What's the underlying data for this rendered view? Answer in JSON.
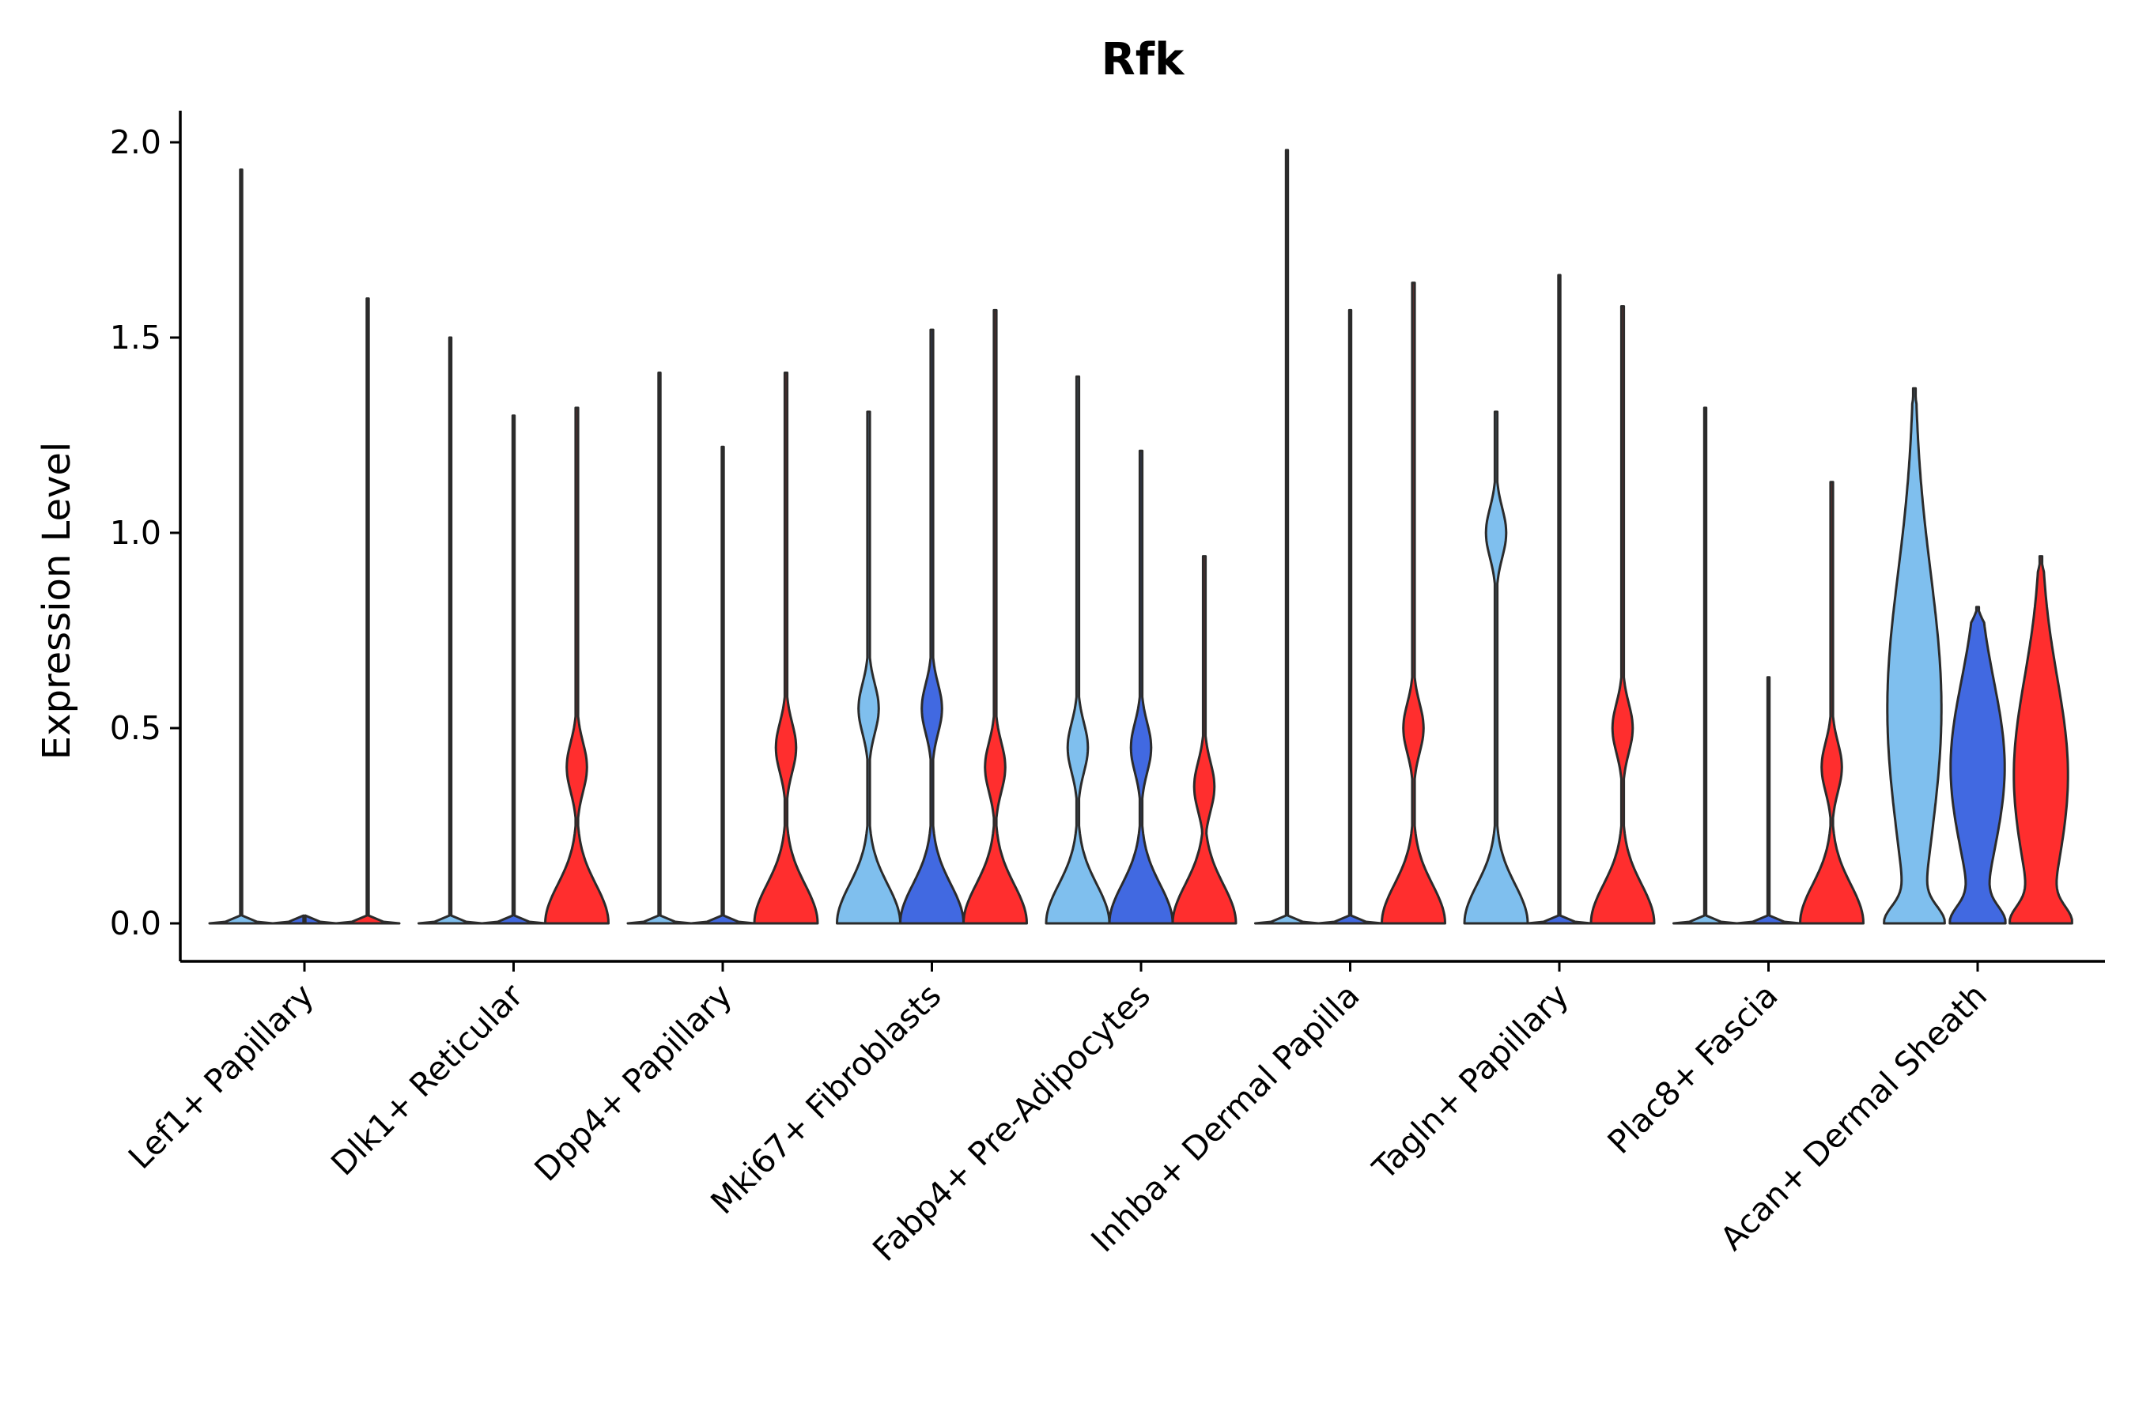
{
  "chart_data": {
    "type": "violin",
    "title": "Rfk",
    "xlabel": "",
    "ylabel": "Expression Level",
    "ylim": [
      -0.1,
      2.08
    ],
    "yticks": [
      "0.0",
      "0.5",
      "1.0",
      "1.5",
      "2.0"
    ],
    "ytick_values": [
      0,
      0.5,
      1.0,
      1.5,
      2.0
    ],
    "grid": false,
    "legend": "none",
    "series_colors": [
      "#7fbfee",
      "#4169e1",
      "#ff2e2e"
    ],
    "categories": [
      "Lef1+ Papillary",
      "Dlk1+ Reticular",
      "Dpp4+ Papillary",
      "Mki67+ Fibroblasts",
      "Fabp4+ Pre-Adipocytes",
      "Inhba+ Dermal Papilla",
      "Tagln+ Papillary",
      "Plac8+ Fascia",
      "Acan+ Dermal Sheath"
    ],
    "violins": [
      [
        {
          "max": 1.93,
          "body": "flat"
        },
        {
          "max": 0,
          "body": "flat"
        },
        {
          "max": 1.6,
          "body": "flat"
        }
      ],
      [
        {
          "max": 1.5,
          "body": "flat"
        },
        {
          "max": 1.3,
          "body": "flat"
        },
        {
          "max": 1.32,
          "body": "bimodal",
          "peak": 0.4
        }
      ],
      [
        {
          "max": 1.41,
          "body": "flat"
        },
        {
          "max": 1.22,
          "body": "flat"
        },
        {
          "max": 1.41,
          "body": "bimodal",
          "peak": 0.45
        }
      ],
      [
        {
          "max": 1.31,
          "body": "bimodal",
          "peak": 0.55
        },
        {
          "max": 1.52,
          "body": "bimodal",
          "peak": 0.55
        },
        {
          "max": 1.57,
          "body": "bimodal",
          "peak": 0.4
        }
      ],
      [
        {
          "max": 1.4,
          "body": "bimodal",
          "peak": 0.45
        },
        {
          "max": 1.21,
          "body": "bimodal",
          "peak": 0.45
        },
        {
          "max": 0.94,
          "body": "bimodal",
          "peak": 0.35
        }
      ],
      [
        {
          "max": 1.98,
          "body": "flat"
        },
        {
          "max": 1.57,
          "body": "flat"
        },
        {
          "max": 1.64,
          "body": "bimodal",
          "peak": 0.5
        }
      ],
      [
        {
          "max": 1.31,
          "body": "bimodal",
          "peak": 1.0
        },
        {
          "max": 1.66,
          "body": "flat"
        },
        {
          "max": 1.58,
          "body": "bimodal",
          "peak": 0.5
        }
      ],
      [
        {
          "max": 1.32,
          "body": "flat"
        },
        {
          "max": 0.63,
          "body": "flat"
        },
        {
          "max": 1.13,
          "body": "bimodal",
          "peak": 0.4
        }
      ],
      [
        {
          "max": 1.37,
          "body": "wide",
          "peak": 0.55
        },
        {
          "max": 0.81,
          "body": "wide",
          "peak": 0.4
        },
        {
          "max": 0.94,
          "body": "wide",
          "peak": 0.38
        }
      ]
    ]
  }
}
